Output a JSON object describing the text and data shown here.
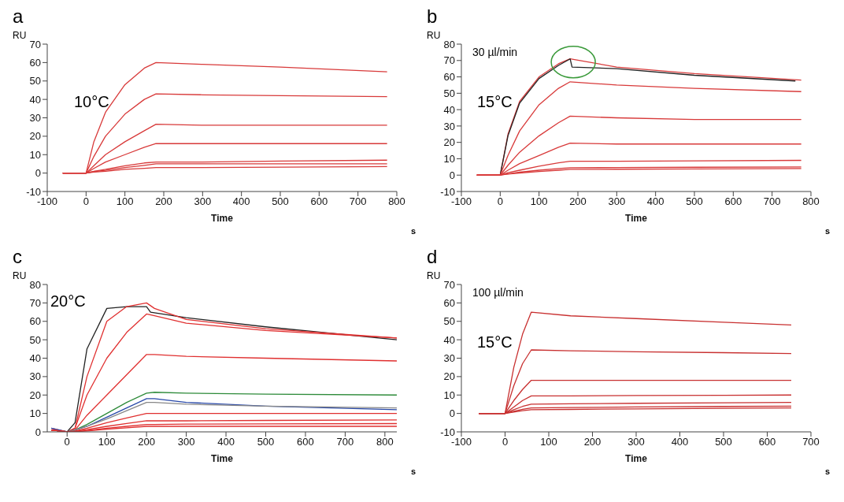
{
  "chart_data": [
    {
      "type": "line",
      "title": "a",
      "ylabel": "RU",
      "xlabel": "Time",
      "annotations": [
        "s",
        "10°C"
      ],
      "xlim": [
        -100,
        800
      ],
      "xticks": [
        -100,
        0,
        100,
        200,
        300,
        400,
        500,
        600,
        700,
        800
      ],
      "ylim": [
        -10,
        70
      ],
      "yticks": [
        -10,
        0,
        10,
        20,
        30,
        40,
        50,
        60,
        70
      ],
      "x": [
        -60,
        0,
        20,
        50,
        100,
        150,
        180,
        300,
        500,
        775
      ],
      "series": [
        {
          "color": "#d83a3a",
          "values": [
            0,
            0,
            17,
            33,
            48,
            57,
            60,
            59,
            57.5,
            55
          ]
        },
        {
          "color": "#d83a3a",
          "values": [
            0,
            0,
            9,
            20,
            32,
            40,
            43,
            42.5,
            42,
            41.5
          ]
        },
        {
          "color": "#d83a3a",
          "values": [
            0,
            0,
            4,
            10,
            17,
            23,
            26.5,
            26,
            26,
            26
          ]
        },
        {
          "color": "#d83a3a",
          "values": [
            0,
            0,
            2.5,
            6,
            10,
            14,
            16,
            16,
            16,
            16
          ]
        },
        {
          "color": "#d83a3a",
          "values": [
            0,
            0,
            1,
            2,
            4,
            5.5,
            6,
            6,
            6.5,
            7
          ]
        },
        {
          "color": "#d83a3a",
          "values": [
            0,
            0,
            0.8,
            1.5,
            3,
            4.2,
            5,
            5,
            5,
            5
          ]
        },
        {
          "color": "#d83a3a",
          "values": [
            0,
            0,
            0.5,
            1,
            2,
            2.6,
            3,
            3,
            3.2,
            3.5
          ]
        }
      ]
    },
    {
      "type": "line",
      "title": "b",
      "ylabel": "RU",
      "xlabel": "Time",
      "annotations": [
        "s",
        "30 µl/min",
        "15°C"
      ],
      "xlim": [
        -100,
        800
      ],
      "xticks": [
        -100,
        0,
        100,
        200,
        300,
        400,
        500,
        600,
        700,
        800
      ],
      "ylim": [
        -10,
        80
      ],
      "yticks": [
        -10,
        0,
        10,
        20,
        30,
        40,
        50,
        60,
        70,
        80
      ],
      "x": [
        -60,
        0,
        20,
        50,
        100,
        150,
        180,
        300,
        500,
        775
      ],
      "series": [
        {
          "color": "#d83a3a",
          "values": [
            0,
            0,
            25,
            45,
            60,
            68,
            71,
            66,
            62,
            58
          ]
        },
        {
          "color": "#222222",
          "x": [
            0,
            20,
            50,
            100,
            150,
            180,
            185,
            300,
            500,
            760
          ],
          "values": [
            0,
            24,
            44,
            59,
            67,
            71,
            66,
            65,
            61,
            57.5
          ]
        },
        {
          "color": "#d83a3a",
          "values": [
            0,
            0,
            12,
            27,
            43,
            53,
            57,
            55,
            53,
            51
          ]
        },
        {
          "color": "#d83a3a",
          "values": [
            0,
            0,
            6,
            14,
            24,
            32,
            36,
            35,
            34,
            34
          ]
        },
        {
          "color": "#d83a3a",
          "values": [
            0,
            0,
            3,
            7,
            12,
            17,
            19.5,
            19,
            19,
            19
          ]
        },
        {
          "color": "#d83a3a",
          "values": [
            0,
            0,
            1.5,
            3,
            5.5,
            7.5,
            8.5,
            8.5,
            8.7,
            9
          ]
        },
        {
          "color": "#d83a3a",
          "values": [
            0,
            0,
            0.8,
            1.8,
            3,
            4,
            4.5,
            4.6,
            4.8,
            5
          ]
        },
        {
          "color": "#d83a3a",
          "values": [
            0,
            0,
            0.6,
            1.3,
            2.2,
            3,
            3.5,
            3.6,
            3.8,
            4
          ]
        }
      ]
    },
    {
      "type": "line",
      "title": "c",
      "ylabel": "RU",
      "xlabel": "Time",
      "annotations": [
        "s",
        "20°C"
      ],
      "xlim": [
        -50,
        830
      ],
      "xticks": [
        0,
        100,
        200,
        300,
        400,
        500,
        600,
        700,
        800
      ],
      "ylim": [
        0,
        80
      ],
      "yticks": [
        0,
        10,
        20,
        30,
        40,
        50,
        60,
        70,
        80
      ],
      "x": [
        -40,
        0,
        20,
        50,
        100,
        150,
        200,
        220,
        300,
        500,
        830
      ],
      "series": [
        {
          "color": "#222222",
          "x": [
            0,
            20,
            50,
            100,
            150,
            200,
            210,
            300,
            500,
            830
          ],
          "values": [
            0,
            5,
            45,
            67,
            68,
            68,
            65,
            62,
            57,
            50
          ]
        },
        {
          "color": "#e03030",
          "values": [
            2,
            0,
            2,
            30,
            60,
            68,
            70,
            67,
            61,
            56,
            51
          ]
        },
        {
          "color": "#e03030",
          "values": [
            1,
            0,
            2,
            20,
            40,
            54,
            64,
            63,
            59,
            55,
            51
          ]
        },
        {
          "color": "#e03030",
          "values": [
            1,
            0,
            1,
            9,
            20,
            31,
            42,
            42,
            41,
            40,
            38.5
          ]
        },
        {
          "color": "#2e8b3a",
          "values": [
            1,
            0,
            1,
            4,
            10,
            16,
            21,
            21.5,
            21,
            20.5,
            20
          ]
        },
        {
          "color": "#2848a8",
          "values": [
            2,
            0,
            1,
            3,
            8,
            13,
            18,
            18,
            16,
            14,
            12
          ]
        },
        {
          "color": "#888888",
          "values": [
            1,
            0,
            1,
            3,
            7,
            11.5,
            16,
            16,
            15,
            14,
            13
          ]
        },
        {
          "color": "#e03030",
          "values": [
            1,
            0,
            0.5,
            2,
            5,
            7.5,
            10,
            10,
            10,
            10,
            10
          ]
        },
        {
          "color": "#e03030",
          "values": [
            1,
            0,
            0.3,
            1.2,
            3,
            4.5,
            6,
            6,
            6,
            6.2,
            6.5
          ]
        },
        {
          "color": "#e03030",
          "values": [
            1,
            0,
            0.2,
            0.8,
            2,
            3,
            4,
            4,
            4.2,
            4.3,
            4.5
          ]
        },
        {
          "color": "#e03030",
          "values": [
            1,
            0,
            0.1,
            0.5,
            1.5,
            2.2,
            3,
            3,
            3,
            3,
            3
          ]
        }
      ]
    },
    {
      "type": "line",
      "title": "d",
      "ylabel": "RU",
      "xlabel": "Time",
      "annotations": [
        "s",
        "100 µl/min",
        "15°C"
      ],
      "xlim": [
        -100,
        700
      ],
      "xticks": [
        -100,
        0,
        100,
        200,
        300,
        400,
        500,
        600,
        700
      ],
      "ylim": [
        -10,
        70
      ],
      "yticks": [
        -10,
        0,
        10,
        20,
        30,
        40,
        50,
        60,
        70
      ],
      "x": [
        -60,
        0,
        20,
        40,
        60,
        150,
        300,
        500,
        655
      ],
      "series": [
        {
          "color": "#c83030",
          "values": [
            0,
            0,
            25,
            43,
            55,
            53,
            51.5,
            49.5,
            48
          ]
        },
        {
          "color": "#c83030",
          "values": [
            0,
            0,
            15,
            27,
            34.5,
            34,
            33.5,
            33,
            32.5
          ]
        },
        {
          "color": "#c83030",
          "values": [
            0,
            0,
            7,
            13,
            18,
            18,
            18,
            18,
            18
          ]
        },
        {
          "color": "#c83030",
          "values": [
            0,
            0,
            3.5,
            7,
            9.5,
            9.5,
            9.7,
            9.8,
            10
          ]
        },
        {
          "color": "#c83030",
          "values": [
            0,
            0,
            2,
            3.8,
            5,
            5.2,
            5.5,
            5.8,
            6
          ]
        },
        {
          "color": "#c83030",
          "values": [
            0,
            0,
            1.2,
            2.2,
            3,
            3.2,
            3.5,
            3.8,
            4
          ]
        },
        {
          "color": "#c83030",
          "values": [
            0,
            0,
            0.8,
            1.5,
            2,
            2.2,
            2.5,
            2.8,
            3
          ]
        }
      ]
    }
  ]
}
